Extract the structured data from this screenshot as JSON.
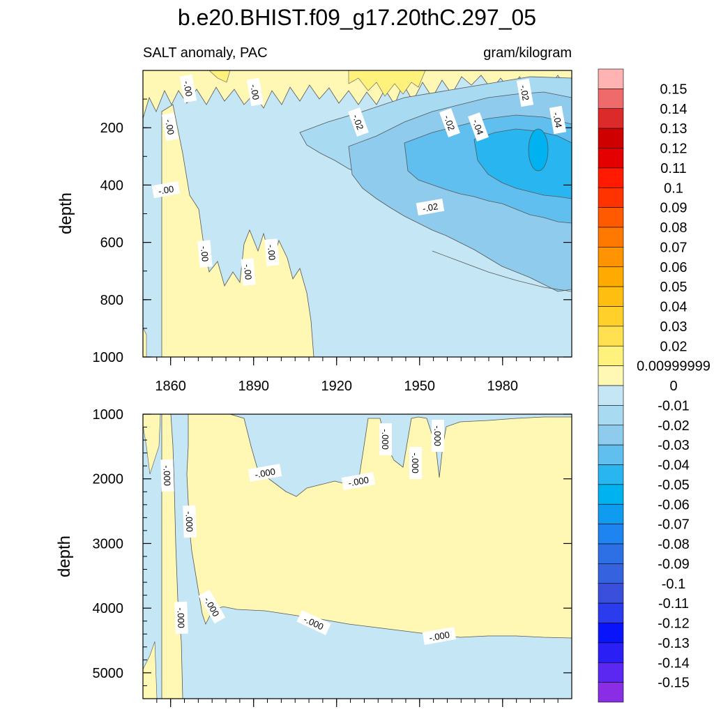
{
  "title": "b.e20.BHIST.f09_g17.20thC.297_05",
  "left_subtitle": "SALT anomaly, PAC",
  "right_subtitle": "gram/kilogram",
  "colorbar": {
    "labels": [
      "0.15",
      "0.14",
      "0.13",
      "0.12",
      "0.11",
      "0.1",
      "0.09",
      "0.08",
      "0.07",
      "0.06",
      "0.05",
      "0.04",
      "0.03",
      "0.02",
      "0.00999999",
      "0",
      "-0.01",
      "-0.02",
      "-0.03",
      "-0.04",
      "-0.05",
      "-0.06",
      "-0.07",
      "-0.08",
      "-0.09",
      "-0.1",
      "-0.11",
      "-0.12",
      "-0.13",
      "-0.14",
      "-0.15"
    ],
    "colors": [
      "#ffb3b3",
      "#ef6b6b",
      "#dc2a2a",
      "#cf0000",
      "#e40000",
      "#ff1a00",
      "#ff3300",
      "#ff5a00",
      "#ff7800",
      "#ff9400",
      "#ffaa00",
      "#ffbe10",
      "#ffcf2a",
      "#ffe050",
      "#fff27c",
      "#fff8b4",
      "#c4e6f5",
      "#a8daf2",
      "#8fcbed",
      "#61bff0",
      "#29b6f0",
      "#00b2f0",
      "#0e9bf0",
      "#1e84f0",
      "#2d70e6",
      "#3563e0",
      "#3a50dd",
      "#2a3cee",
      "#0a14fa",
      "#2a20f5",
      "#5a28f0",
      "#8a2ee6"
    ]
  },
  "chart_data": [
    {
      "type": "contour",
      "panel": "upper",
      "xlabel": "",
      "ylabel": "depth",
      "xlim": [
        1850,
        2005
      ],
      "ylim": [
        1000,
        0
      ],
      "x_ticks": [
        "1860",
        "1890",
        "1920",
        "1950",
        "1980"
      ],
      "y_ticks": [
        "200",
        "400",
        "600",
        "800",
        "1000"
      ],
      "contour_labels": [
        "-.00",
        "-.00",
        "-.00",
        "-.00",
        "-.00",
        "-.00",
        "-.00",
        "-.02",
        "-.02",
        "-.02",
        "-.04",
        "-.04",
        "-.02"
      ],
      "description_fields": {
        "near_surface_positive_years": [
          1850,
          2005
        ],
        "deep_negative_trend_onset_year": 1925,
        "min_anomaly": -0.06
      }
    },
    {
      "type": "contour",
      "panel": "lower",
      "xlabel": "",
      "ylabel": "depth",
      "xlim": [
        1850,
        2005
      ],
      "ylim": [
        5400,
        1000
      ],
      "y_ticks": [
        "1000",
        "2000",
        "3000",
        "4000",
        "5000"
      ],
      "contour_labels": [
        "-.000",
        "-.000",
        "-.000",
        "-.000",
        "-.000",
        "-.000",
        "-.000",
        "-.000",
        "-.000",
        "-.000",
        "-.000"
      ],
      "description_fields": {
        "positive_layer_depth_range": [
          1100,
          4400
        ]
      }
    }
  ]
}
